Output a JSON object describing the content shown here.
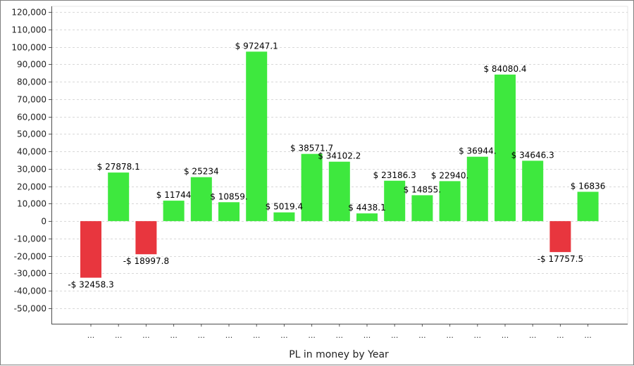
{
  "chart_data": {
    "type": "bar",
    "title": "",
    "xlabel": "PL in money by Year",
    "ylabel": "",
    "ylim": [
      -50000,
      120000
    ],
    "yticks": [
      -50000,
      -40000,
      -30000,
      -20000,
      -10000,
      0,
      10000,
      20000,
      30000,
      40000,
      50000,
      60000,
      70000,
      80000,
      90000,
      100000,
      110000,
      120000
    ],
    "ytick_labels": [
      "-50,000",
      "-40,000",
      "-30,000",
      "-20,000",
      "-10,000",
      "0",
      "10,000",
      "20,000",
      "30,000",
      "40,000",
      "50,000",
      "60,000",
      "70,000",
      "80,000",
      "90,000",
      "100,000",
      "110,000",
      "120,000"
    ],
    "grid": true,
    "categories": [
      "...",
      "...",
      "...",
      "...",
      "...",
      "...",
      "...",
      "...",
      "...",
      "...",
      "...",
      "...",
      "...",
      "...",
      "...",
      "...",
      "...",
      "...",
      "..."
    ],
    "values": [
      -32458.3,
      27878.1,
      -18997.8,
      11744,
      25234,
      10859,
      97247.1,
      5019.4,
      38571.7,
      34102.2,
      4438.1,
      23186.3,
      14855,
      22940,
      36944,
      84080.4,
      34646.3,
      -17757.5,
      16836
    ],
    "data_labels": [
      "-$ 32458.3",
      "$ 27878.1",
      "-$ 18997.8",
      "$ 11744",
      "$ 25234",
      "$ 10859.",
      "$ 97247.1",
      "$ 5019.4",
      "$ 38571.7",
      "$ 34102.2",
      "$ 4438.1",
      "$ 23186.3",
      "$ 14855.",
      "$ 22940.",
      "$ 36944.",
      "$ 84080.4",
      "$ 34646.3",
      "-$ 17757.5",
      "$ 16836"
    ],
    "colors": {
      "positive": "#3ee83e",
      "negative": "#e8363e",
      "grid": "#d8d8d8",
      "axis": "#555555"
    }
  }
}
